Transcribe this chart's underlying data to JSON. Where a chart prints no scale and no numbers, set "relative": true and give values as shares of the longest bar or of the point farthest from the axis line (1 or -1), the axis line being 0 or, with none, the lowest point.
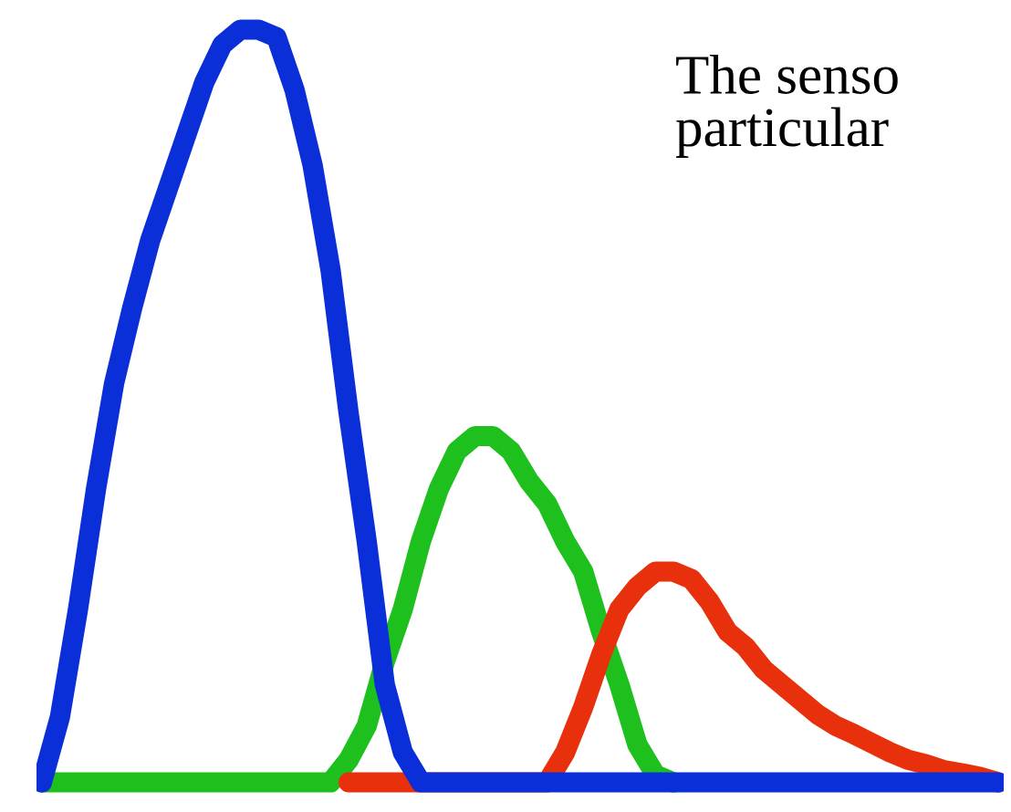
{
  "chart_data": {
    "type": "line",
    "relative": true,
    "line_style": "solid",
    "grid": false,
    "legend": false,
    "categories": [
      null,
      null,
      null,
      null,
      null,
      null,
      null,
      null,
      null,
      null,
      null,
      null,
      null,
      null,
      null,
      null,
      null,
      null,
      null,
      null,
      null,
      null,
      null,
      null,
      null,
      null,
      null,
      null,
      null,
      null,
      null,
      null,
      null,
      null,
      null,
      null,
      null,
      null,
      null,
      null,
      null,
      null,
      null,
      null,
      null,
      null,
      null,
      null,
      null,
      null,
      null,
      null,
      null,
      null
    ],
    "series": [
      {
        "color": "#1ec01e",
        "values": [
          0,
          0,
          0,
          0,
          0,
          0,
          0,
          0,
          0,
          0,
          0,
          0,
          0,
          0,
          0,
          0,
          0,
          0.03,
          0.075,
          0.16,
          0.23,
          0.32,
          0.39,
          0.44,
          0.46,
          0.46,
          0.44,
          0.4,
          0.37,
          0.32,
          0.28,
          0.2,
          0.13,
          0.05,
          0.01,
          0,
          null,
          null,
          null,
          null,
          null,
          null,
          null,
          null,
          null,
          null,
          null,
          null,
          null,
          null,
          null,
          null,
          null,
          null
        ]
      },
      {
        "color": "#e8300c",
        "values": [
          null,
          null,
          null,
          null,
          null,
          null,
          null,
          null,
          null,
          null,
          null,
          null,
          null,
          null,
          null,
          null,
          null,
          0,
          0,
          0,
          0,
          0,
          0,
          0,
          0,
          0,
          0,
          0,
          0,
          0.04,
          0.1,
          0.17,
          0.23,
          0.26,
          0.28,
          0.28,
          0.27,
          0.24,
          0.2,
          0.18,
          0.15,
          0.13,
          0.11,
          0.09,
          0.075,
          0.064,
          0.052,
          0.04,
          0.03,
          0.024,
          0.016,
          0.012,
          0.007,
          0
        ]
      },
      {
        "color": "#0a2ed8",
        "values": [
          0,
          0.087,
          0.23,
          0.39,
          0.53,
          0.63,
          0.72,
          0.79,
          0.86,
          0.93,
          0.98,
          1,
          1,
          0.99,
          0.92,
          0.82,
          0.68,
          0.49,
          0.32,
          0.13,
          0.04,
          0,
          0,
          0,
          0,
          0,
          0,
          0,
          0,
          0,
          0,
          0,
          0,
          0,
          0,
          0,
          0,
          0,
          0,
          0,
          0,
          0,
          0,
          0,
          0,
          0,
          0,
          0,
          0,
          0,
          0,
          0,
          0,
          0
        ]
      }
    ],
    "annotations": [
      "The senso\nparticular"
    ]
  }
}
